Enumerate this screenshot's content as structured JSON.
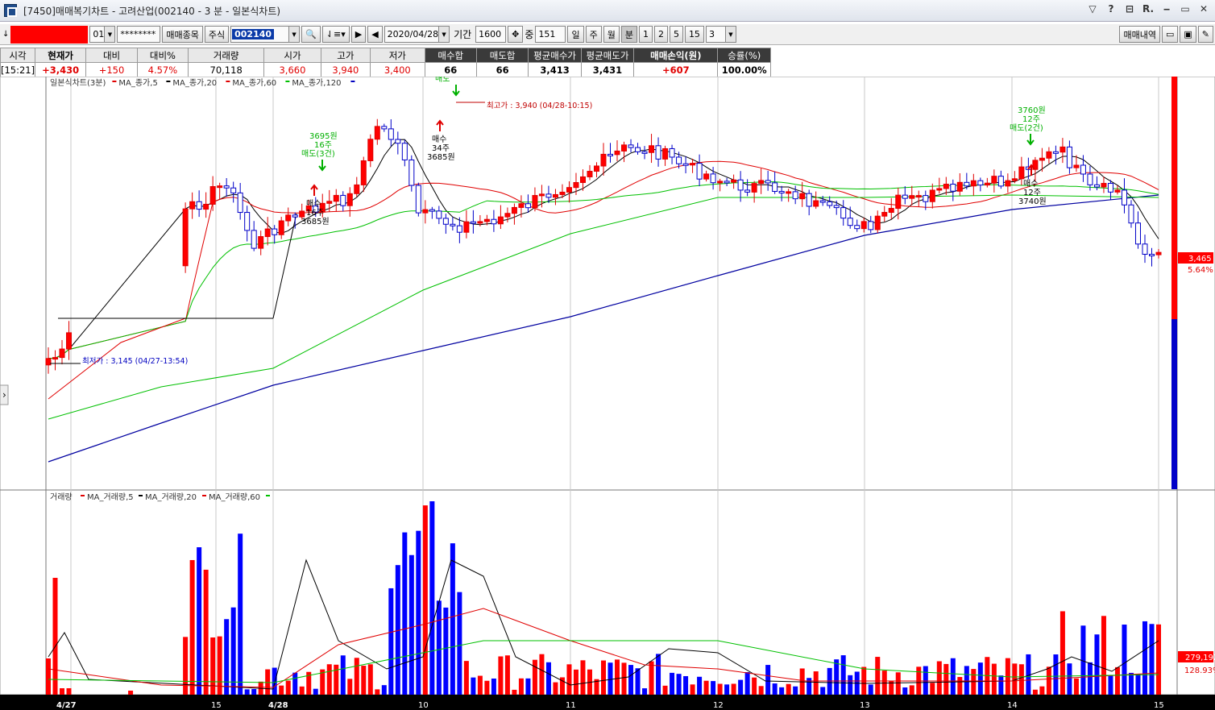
{
  "window": {
    "title": "[7450]매매복기차트 - 고려산업(002140 - 3 분 - 일본식차트)",
    "controls": [
      "▽",
      "?",
      "⊟",
      "R.",
      "‒",
      "▭",
      "✕"
    ]
  },
  "toolbar": {
    "account_suffix": "01",
    "password": "********",
    "item_button": "매매종목",
    "market": "주식",
    "code": "002140",
    "date": "2020/04/28",
    "period_label": "기간",
    "period_value": "1600",
    "middle_label": "중",
    "middle_value": "151",
    "day": "일",
    "week": "주",
    "month": "월",
    "minute": "분",
    "intervals": [
      "1",
      "2",
      "5",
      "15"
    ],
    "interval_value": "3",
    "history_button": "매매내역"
  },
  "quote": {
    "headers": [
      "시각",
      "현재가",
      "대비",
      "대비%",
      "거래량",
      "시가",
      "고가",
      "저가",
      "매수합",
      "매도합",
      "평균매수가",
      "평균매도가",
      "매매손익(원)",
      "승률(%)"
    ],
    "values": [
      "[15:21]",
      "+3,430",
      "+150",
      "4.57%",
      "70,118",
      "3,660",
      "3,940",
      "3,400",
      "66",
      "66",
      "3,413",
      "3,431",
      "+607",
      "100.00%"
    ]
  },
  "chart_data": {
    "type": "candlestick",
    "title": "일본식차트(3분)",
    "legend": [
      "MA_종가,5",
      "MA_종가,20",
      "MA_종가,60",
      "MA_종가,120"
    ],
    "legend_colors": [
      "#e00000",
      "#000000",
      "#e00000",
      "#00c000",
      "#0000c0"
    ],
    "x_ticks": [
      "4/27",
      "15",
      "4/28",
      "10",
      "11",
      "12",
      "13",
      "14",
      "15"
    ],
    "high_label": "최고가 : 3,940 (04/28-10:15)",
    "low_label": "최저가 : 3,145 (04/27-13:54)",
    "price_label": "3,465",
    "price_pct": "5.64%",
    "trades": [
      {
        "kind": "sell",
        "price": "3695원",
        "qty": "16주",
        "label": "매도(3건)"
      },
      {
        "kind": "buy",
        "price": "3685원",
        "qty": "16주",
        "label": "매수"
      },
      {
        "kind": "sell",
        "label": "매도"
      },
      {
        "kind": "buy",
        "price": "3685원",
        "qty": "34주",
        "label": "매수"
      },
      {
        "kind": "sell",
        "price": "3760원",
        "qty": "12주",
        "label": "매도(2건)"
      },
      {
        "kind": "buy",
        "price": "3740원",
        "qty": "12주",
        "label": "매수"
      }
    ],
    "volume_title": "거래량",
    "volume_legend": [
      "MA_거래량,5",
      "MA_거래량,20",
      "MA_거래량,60"
    ],
    "volume_value": "279,192",
    "volume_pct": "128.93%"
  },
  "colors": {
    "up": "#ff0000",
    "down": "#0000ff",
    "bg": "#ffffff",
    "grid": "#c8c8c8"
  }
}
